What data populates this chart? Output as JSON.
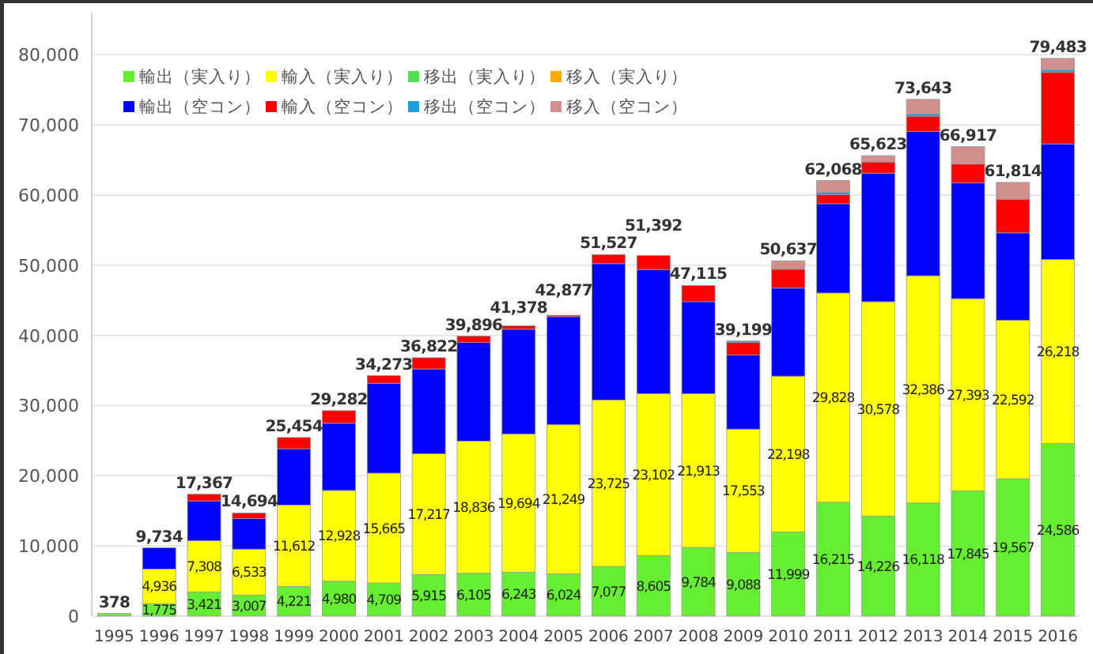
{
  "chart_data": {
    "type": "bar",
    "stacked": true,
    "grid": "y",
    "legend": "top left",
    "categories": [
      "1995",
      "1996",
      "1997",
      "1998",
      "1999",
      "2000",
      "2001",
      "2002",
      "2003",
      "2004",
      "2005",
      "2006",
      "2007",
      "2008",
      "2009",
      "2010",
      "2011",
      "2012",
      "2013",
      "2014",
      "2015",
      "2016"
    ],
    "ylim": [
      0,
      86000
    ],
    "yticks": [
      {
        "value": 0,
        "label": "0"
      },
      {
        "value": 10000,
        "label": "10,000"
      },
      {
        "value": 20000,
        "label": "20,000"
      },
      {
        "value": 30000,
        "label": "30,000"
      },
      {
        "value": 40000,
        "label": "40,000"
      },
      {
        "value": 50000,
        "label": "50,000"
      },
      {
        "value": 60000,
        "label": "60,000"
      },
      {
        "value": 70000,
        "label": "70,000"
      },
      {
        "value": 80000,
        "label": "80,000"
      }
    ],
    "series": [
      {
        "name": "輸出（実入り）",
        "color": "#66ee33",
        "values": [
          378,
          1775,
          3421,
          3007,
          4221,
          4980,
          4709,
          5915,
          6105,
          6243,
          6024,
          7077,
          8605,
          9784,
          9088,
          11999,
          16215,
          14226,
          16118,
          17845,
          19567,
          24586
        ],
        "value_labels": [
          null,
          "1,775",
          "3,421",
          "3,007",
          "4,221",
          "4,980",
          "4,709",
          "5,915",
          "6,105",
          "6,243",
          "6,024",
          "7,077",
          "8,605",
          "9,784",
          "9,088",
          "11,999",
          "16,215",
          "14,226",
          "16,118",
          "17,845",
          "19,567",
          "24,586"
        ]
      },
      {
        "name": "輸入（実入り）",
        "color": "#ffff00",
        "values": [
          0,
          4936,
          7308,
          6533,
          11612,
          12928,
          15665,
          17217,
          18836,
          19694,
          21249,
          23725,
          23102,
          21913,
          17553,
          22198,
          29828,
          30578,
          32386,
          27393,
          22592,
          26218
        ],
        "value_labels": [
          null,
          "4,936",
          "7,308",
          "6,533",
          "11,612",
          "12,928",
          "15,665",
          "17,217",
          "18,836",
          "19,694",
          "21,249",
          "23,725",
          "23,102",
          "21,913",
          "17,553",
          "22,198",
          "29,828",
          "30,578",
          "32,386",
          "27,393",
          "22,592",
          "26,218"
        ]
      },
      {
        "name": "移出（実入り）",
        "color": "#55dd55",
        "values": [
          0,
          0,
          0,
          0,
          0,
          0,
          0,
          0,
          0,
          0,
          0,
          0,
          0,
          0,
          0,
          0,
          0,
          0,
          0,
          0,
          0,
          0
        ]
      },
      {
        "name": "移入（実入り）",
        "color": "#ffaa00",
        "values": [
          0,
          0,
          0,
          0,
          0,
          0,
          0,
          0,
          0,
          0,
          0,
          0,
          0,
          0,
          0,
          0,
          0,
          0,
          0,
          0,
          0,
          0
        ]
      },
      {
        "name": "輸出（空コン）",
        "color": "#0000ff",
        "values": [
          0,
          3023,
          5688,
          4354,
          8021,
          9574,
          12799,
          12090,
          14055,
          14941,
          15404,
          19425,
          17685,
          13118,
          10558,
          12540,
          12725,
          18319,
          20539,
          16479,
          12455,
          16479
        ]
      },
      {
        "name": "輸入（空コン）",
        "color": "#ff0000",
        "values": [
          0,
          0,
          950,
          800,
          1600,
          1800,
          1100,
          1600,
          900,
          500,
          200,
          1300,
          2000,
          2300,
          1800,
          2700,
          1300,
          1600,
          2200,
          2700,
          4800,
          10200
        ]
      },
      {
        "name": "移出（空コン）",
        "color": "#1ea0e0",
        "values": [
          0,
          0,
          0,
          0,
          0,
          0,
          0,
          0,
          0,
          0,
          0,
          0,
          0,
          0,
          200,
          0,
          300,
          0,
          300,
          0,
          0,
          400
        ]
      },
      {
        "name": "移入（空コン）",
        "color": "#d09090",
        "values": [
          0,
          0,
          0,
          0,
          0,
          0,
          0,
          0,
          0,
          0,
          0,
          0,
          0,
          0,
          0,
          1200,
          1700,
          900,
          2100,
          2500,
          2400,
          1600
        ]
      }
    ],
    "totals": [
      "378",
      "9,734",
      "17,367",
      "14,694",
      "25,454",
      "29,282",
      "34,273",
      "36,822",
      "39,896",
      "41,378",
      "42,877",
      "51,527",
      "51,392",
      "47,115",
      "39,199",
      "50,637",
      "62,068",
      "65,623",
      "73,643",
      "66,917",
      "61,814",
      "79,483"
    ]
  }
}
